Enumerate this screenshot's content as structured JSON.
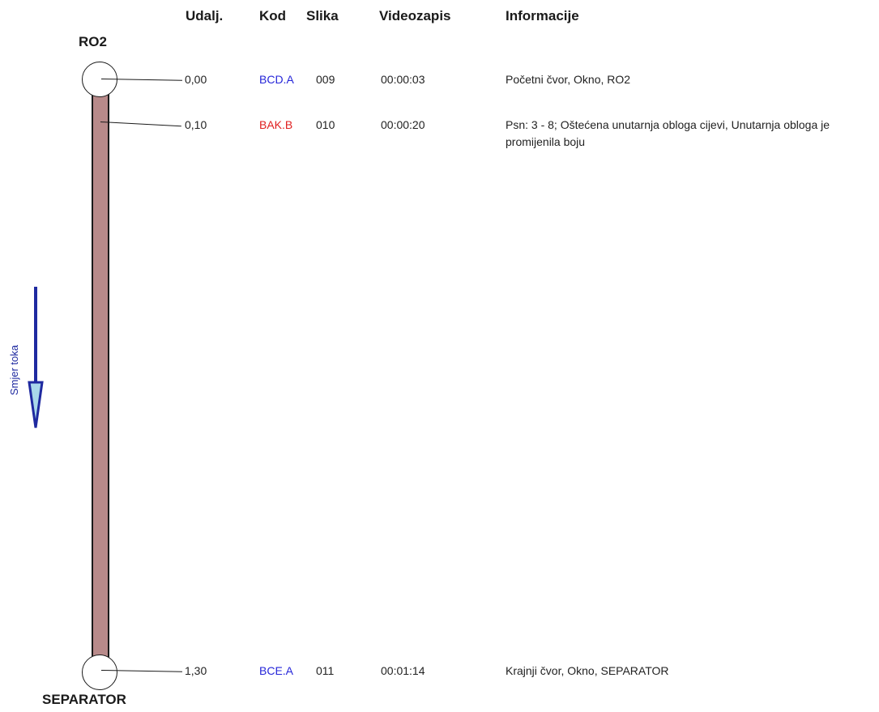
{
  "headers": {
    "distance": "Udalj.",
    "code": "Kod",
    "image": "Slika",
    "video": "Videozapis",
    "info": "Informacije"
  },
  "start_node": "RO2",
  "end_node": "SEPARATOR",
  "flow_label": "Smjer toka",
  "rows": [
    {
      "distance": "0,00",
      "code": "BCD.A",
      "code_color": "#2626d9",
      "image": "009",
      "video": "00:00:03",
      "info": "Početni čvor, Okno, RO2"
    },
    {
      "distance": "0,10",
      "code": "BAK.B",
      "code_color": "#e02020",
      "image": "010",
      "video": "00:00:20",
      "info": "Psn: 3 - 8; Oštećena unutarnja obloga cijevi, Unutarnja obloga je promijenila boju"
    },
    {
      "distance": "1,30",
      "code": "BCE.A",
      "code_color": "#2626d9",
      "image": "011",
      "video": "00:01:14",
      "info": "Krajnji čvor, Okno, SEPARATOR"
    }
  ],
  "colors": {
    "pipe_fill": "#b88a8a",
    "flow_arrow": "#1f2aa0",
    "flow_arrow_head": "#a9d8ea"
  }
}
